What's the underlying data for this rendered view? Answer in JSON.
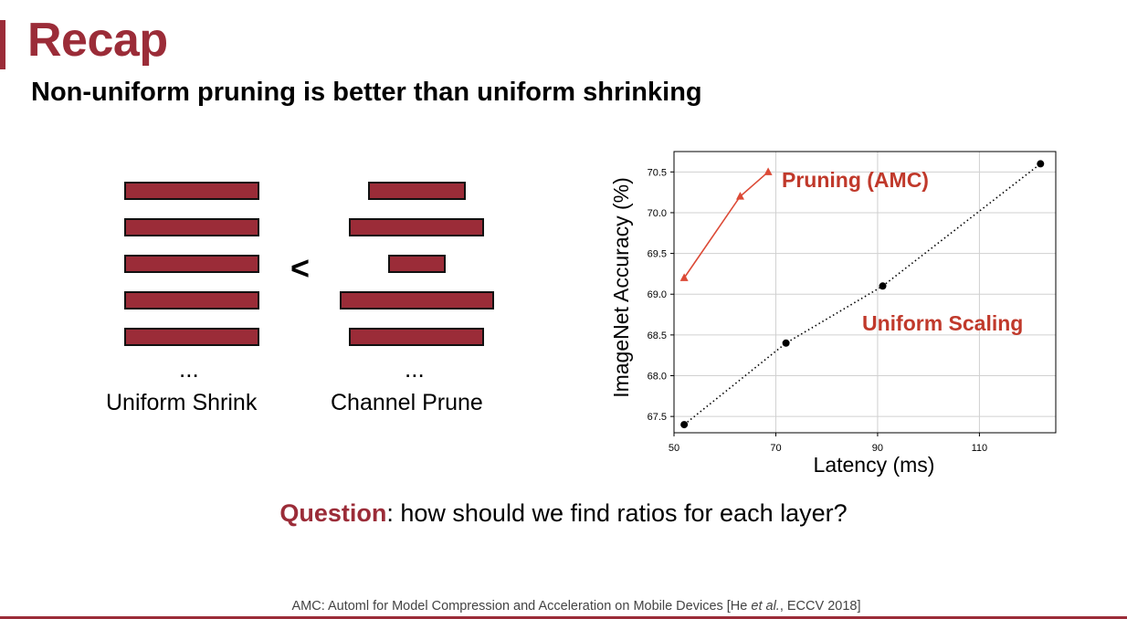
{
  "slide": {
    "title": "Recap",
    "subtitle": "Non-uniform pruning is better than uniform shrinking",
    "comparison_symbol": "<",
    "ellipsis": "...",
    "uniform_label": "Uniform Shrink",
    "channel_label": "Channel Prune",
    "question_highlight": "Question",
    "question_rest": ": how should we find ratios for each layer?",
    "citation_prefix": "AMC: Automl for Model Compression and Acceleration on Mobile Devices [He ",
    "citation_etal": "et al.",
    "citation_suffix": ", ECCV 2018]",
    "colors": {
      "accent": "#9b2c38",
      "annotation": "#c0392b"
    }
  },
  "chart_data": {
    "type": "line",
    "xlabel": "Latency (ms)",
    "ylabel": "ImageNet Accuracy (%)",
    "xlim": [
      50,
      125
    ],
    "ylim": [
      67.3,
      70.75
    ],
    "xticks": [
      50,
      70,
      90,
      110
    ],
    "yticks": [
      67.5,
      68.0,
      68.5,
      69.0,
      69.5,
      70.0,
      70.5
    ],
    "grid": true,
    "series": [
      {
        "name": "Pruning (AMC)",
        "color": "#dc4a36",
        "marker": "triangle",
        "line": "solid",
        "x": [
          52,
          63,
          68.5
        ],
        "y": [
          69.2,
          70.2,
          70.5
        ]
      },
      {
        "name": "Uniform Scaling",
        "color": "#000000",
        "marker": "circle",
        "line": "dotted",
        "x": [
          52,
          72,
          91,
          122
        ],
        "y": [
          67.4,
          68.4,
          69.1,
          70.6
        ]
      }
    ]
  }
}
